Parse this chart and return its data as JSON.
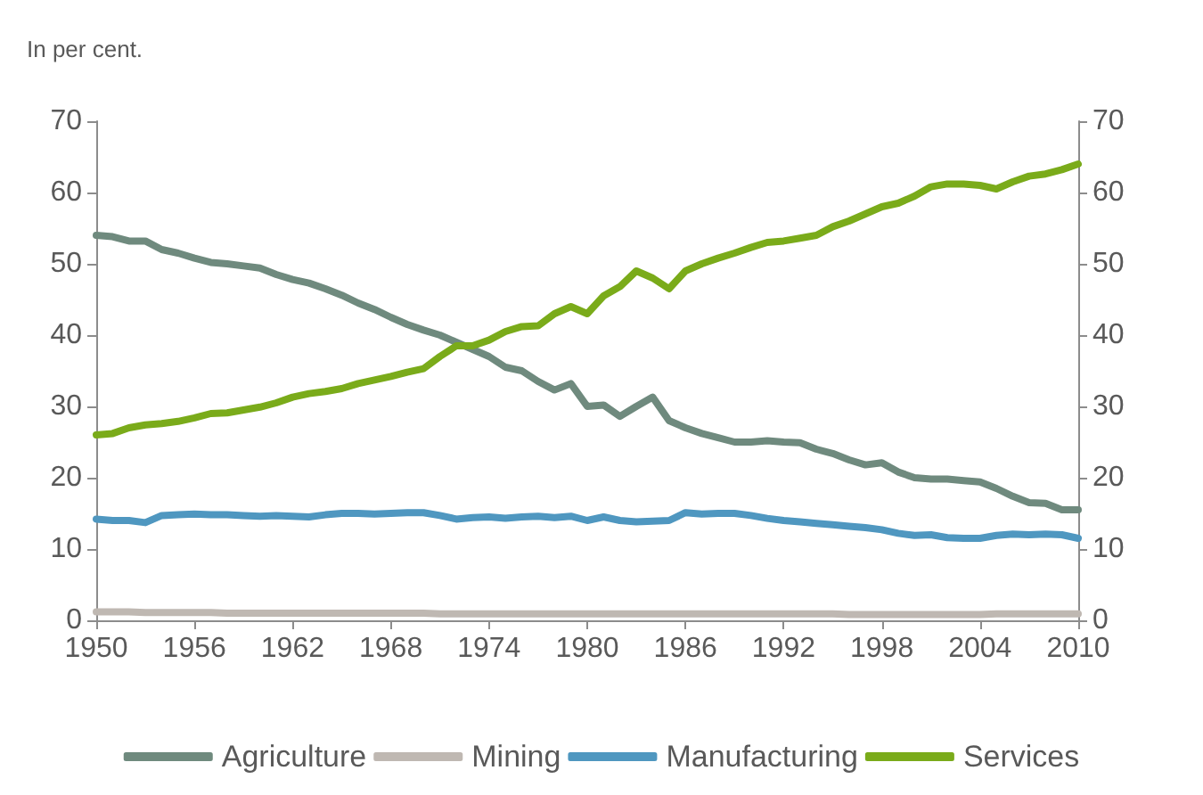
{
  "chart_data": {
    "type": "line",
    "annotations": [
      "In per cent."
    ],
    "x": [
      1950,
      1951,
      1952,
      1953,
      1954,
      1955,
      1956,
      1957,
      1958,
      1959,
      1960,
      1961,
      1962,
      1963,
      1964,
      1965,
      1966,
      1967,
      1968,
      1969,
      1970,
      1971,
      1972,
      1973,
      1974,
      1975,
      1976,
      1977,
      1978,
      1979,
      1980,
      1981,
      1982,
      1983,
      1984,
      1985,
      1986,
      1987,
      1988,
      1989,
      1990,
      1991,
      1992,
      1993,
      1994,
      1995,
      1996,
      1997,
      1998,
      1999,
      2000,
      2001,
      2002,
      2003,
      2004,
      2005,
      2006,
      2007,
      2008,
      2009,
      2010
    ],
    "series": [
      {
        "name": "Agriculture",
        "color": "#6f8a7e",
        "values": [
          54,
          53.8,
          53.2,
          53.2,
          52,
          51.5,
          50.8,
          50.2,
          50,
          49.7,
          49.4,
          48.5,
          47.8,
          47.3,
          46.5,
          45.6,
          44.5,
          43.6,
          42.5,
          41.5,
          40.7,
          40,
          39,
          38,
          37,
          35.5,
          35,
          33.5,
          32.3,
          33.2,
          30,
          30.2,
          28.6,
          30,
          31.3,
          28,
          27,
          26.2,
          25.6,
          25,
          25,
          25.2,
          25,
          24.9,
          24,
          23.4,
          22.5,
          21.8,
          22.1,
          20.8,
          20,
          19.8,
          19.8,
          19.6,
          19.4,
          18.5,
          17.4,
          16.5,
          16.4,
          15.5,
          15.5
        ]
      },
      {
        "name": "Mining",
        "color": "#bfb8b2",
        "values": [
          1.2,
          1.2,
          1.2,
          1.1,
          1.1,
          1.1,
          1.1,
          1.1,
          1,
          1,
          1,
          1,
          1,
          1,
          1,
          1,
          1,
          1,
          1,
          1,
          1,
          0.9,
          0.9,
          0.9,
          0.9,
          0.9,
          0.9,
          0.9,
          0.9,
          0.9,
          0.9,
          0.9,
          0.9,
          0.9,
          0.9,
          0.9,
          0.9,
          0.9,
          0.9,
          0.9,
          0.9,
          0.9,
          0.9,
          0.9,
          0.9,
          0.9,
          0.8,
          0.8,
          0.8,
          0.8,
          0.8,
          0.8,
          0.8,
          0.8,
          0.8,
          0.9,
          0.9,
          0.9,
          0.9,
          0.9,
          0.9
        ]
      },
      {
        "name": "Manufacturing",
        "color": "#4f97c0",
        "values": [
          14.2,
          14,
          14,
          13.7,
          14.7,
          14.8,
          14.9,
          14.8,
          14.8,
          14.7,
          14.6,
          14.7,
          14.6,
          14.5,
          14.8,
          15,
          15,
          14.9,
          15,
          15.1,
          15.1,
          14.7,
          14.2,
          14.4,
          14.5,
          14.3,
          14.5,
          14.6,
          14.4,
          14.6,
          14,
          14.5,
          14,
          13.8,
          13.9,
          14,
          15.1,
          14.9,
          15,
          15,
          14.7,
          14.3,
          14,
          13.8,
          13.6,
          13.4,
          13.2,
          13,
          12.7,
          12.2,
          11.9,
          12,
          11.6,
          11.5,
          11.5,
          11.9,
          12.1,
          12,
          12.1,
          12,
          11.5
        ]
      },
      {
        "name": "Services",
        "color": "#7aab1a",
        "values": [
          26,
          26.2,
          27,
          27.4,
          27.6,
          27.9,
          28.4,
          29,
          29.1,
          29.5,
          29.9,
          30.5,
          31.3,
          31.8,
          32.1,
          32.5,
          33.2,
          33.7,
          34.2,
          34.8,
          35.3,
          37,
          38.5,
          38.5,
          39.3,
          40.5,
          41.2,
          41.3,
          43,
          44,
          43,
          45.5,
          46.8,
          49,
          48,
          46.5,
          49,
          50,
          50.8,
          51.5,
          52.3,
          53,
          53.2,
          53.6,
          54,
          55.2,
          56,
          57,
          58,
          58.5,
          59.5,
          60.8,
          61.2,
          61.2,
          61,
          60.5,
          61.5,
          62.3,
          62.6,
          63.2,
          64
        ]
      }
    ],
    "xlim": [
      1950,
      2010
    ],
    "xticks": [
      1950,
      1956,
      1962,
      1968,
      1974,
      1980,
      1986,
      1992,
      1998,
      2004,
      2010
    ],
    "ylim": [
      0,
      70
    ],
    "yticks": [
      0,
      10,
      20,
      30,
      40,
      50,
      60,
      70
    ],
    "y2lim": [
      0,
      70
    ],
    "y2ticks": [
      0,
      10,
      20,
      30,
      40,
      50,
      60,
      70
    ],
    "grid": false,
    "legend": "bottom",
    "marker": "none",
    "line_style": "solid"
  }
}
